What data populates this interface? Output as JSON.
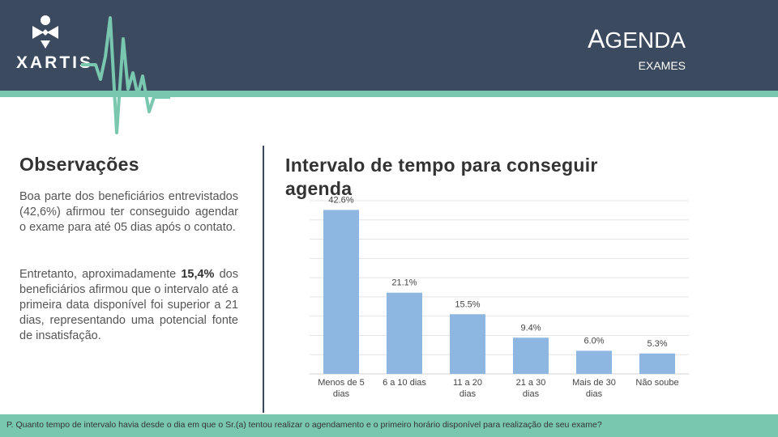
{
  "header": {
    "logo_text": "XARTIS",
    "title_first": "A",
    "title_rest": "GENDA",
    "subtitle": "EXAMES",
    "colors": {
      "header_bg": "#3b4a5e",
      "accent": "#7ac7b0"
    }
  },
  "observations": {
    "title": "Observações",
    "paragraph1": "Boa parte dos beneficiários entrevistados (42,6%) afirmou ter conseguido agendar o exame para até 05 dias após o contato.",
    "paragraph2_before": "Entretanto, aproximadamente ",
    "paragraph2_bold": "15,4%",
    "paragraph2_after": " dos beneficiários afirmou que o intervalo até a primeira data disponível foi superior a 21 dias, representando uma potencial fonte de insatisfação."
  },
  "chart_data": {
    "type": "bar",
    "title": "Intervalo de tempo para conseguir agenda",
    "categories": [
      "Menos de 5 dias",
      "6 a 10 dias",
      "11 a 20 dias",
      "21 a 30 dias",
      "Mais de 30 dias",
      "Não soube"
    ],
    "values": [
      42.6,
      21.1,
      15.5,
      9.4,
      6.0,
      5.3
    ],
    "data_labels": [
      "42.6%",
      "21.1%",
      "15.5%",
      "9.4%",
      "6.0%",
      "5.3%"
    ],
    "ylim": [
      0,
      45
    ],
    "grid": true,
    "bar_color": "#8db6e1",
    "xlabel": "",
    "ylabel": ""
  },
  "footer": {
    "question": "P. Quanto tempo de intervalo havia desde o dia em que o Sr.(a) tentou realizar o agendamento e o primeiro horário disponível para realização de seu exame?"
  }
}
